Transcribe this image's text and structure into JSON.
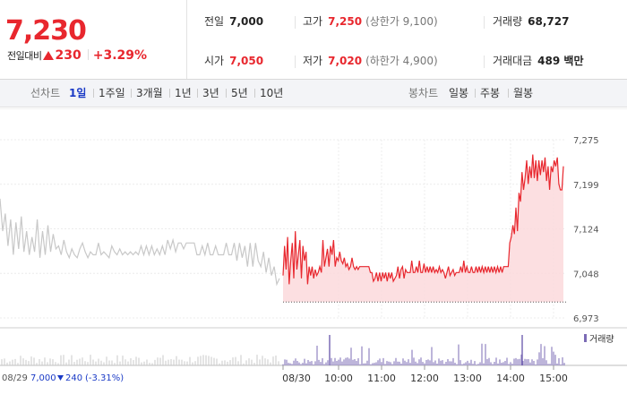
{
  "quote": {
    "price": "7,230",
    "change_label": "전일대비",
    "change_abs": "230",
    "change_pct": "+3.29%",
    "stats": [
      {
        "label": "전일",
        "value": "7,000",
        "note": "",
        "color": "#222222"
      },
      {
        "label": "고가",
        "value": "7,250",
        "note": "(상한가 9,100)",
        "color": "#e8272e"
      },
      {
        "label": "거래량",
        "value": "68,727",
        "note": "",
        "color": "#222222"
      },
      {
        "label": "시가",
        "value": "7,050",
        "note": "",
        "color": "#e8272e"
      },
      {
        "label": "저가",
        "value": "7,020",
        "note": "(하한가 4,900)",
        "color": "#e8272e"
      },
      {
        "label": "거래대금",
        "value": "489 백만",
        "note": "",
        "color": "#222222"
      }
    ]
  },
  "tabs": {
    "line_header": "선차트",
    "line": [
      "1일",
      "1주일",
      "3개월",
      "1년",
      "3년",
      "5년",
      "10년"
    ],
    "active": "1일",
    "candle_header": "봉차트",
    "candle": [
      "일봉",
      "주봉",
      "월봉"
    ]
  },
  "colors": {
    "up": "#e8272e",
    "down": "#1a3ac6",
    "prev_day": "#c8c8c8",
    "volume": "#7b6bb5"
  },
  "chart_data": {
    "type": "line",
    "y_ticks": [
      "7,275",
      "7,199",
      "7,124",
      "7,048",
      "6,973"
    ],
    "ylim": [
      6973,
      7275
    ],
    "baseline": 7000,
    "x_ticks": [
      "08/30",
      "10:00",
      "11:00",
      "12:00",
      "13:00",
      "14:00",
      "15:00"
    ],
    "grid": true,
    "legend": "거래량",
    "prev_day_info": {
      "date": "08/29",
      "close": "7,000",
      "change": "240",
      "pct": "(-3.31%)"
    },
    "prev_day_series": {
      "values": [
        7175,
        7120,
        7150,
        7095,
        7140,
        7080,
        7135,
        7090,
        7145,
        7085,
        7120,
        7080,
        7110,
        7085,
        7140,
        7075,
        7120,
        7080,
        7130,
        7085,
        7115,
        7090,
        7095,
        7080,
        7105,
        7085,
        7075,
        7090,
        7080,
        7075,
        7090,
        7100,
        7085,
        7075,
        7085,
        7080,
        7080,
        7100,
        7080,
        7085,
        7080,
        7075,
        7095,
        7085,
        7080,
        7090,
        7080,
        7085,
        7080,
        7085,
        7080,
        7085,
        7080,
        7095,
        7080,
        7095,
        7080,
        7095,
        7080,
        7090,
        7080,
        7095,
        7080,
        7105,
        7090,
        7105,
        7085,
        7100,
        7100,
        7090,
        7100,
        7100,
        7100,
        7100,
        7080,
        7080,
        7095,
        7080,
        7100,
        7080,
        7080,
        7095,
        7080,
        7080,
        7080,
        7100,
        7080,
        7080,
        7100,
        7070,
        7100,
        7075,
        7095,
        7060,
        7100,
        7060,
        7100,
        7070,
        7060,
        7085,
        7050,
        7075,
        7045,
        7060,
        7030,
        7040
      ]
    },
    "series": [
      {
        "values": [
          7045,
          7095,
          7055,
          7110,
          7030,
          7070,
          7100,
          7040,
          7120,
          7055,
          7080,
          7105,
          7040,
          7095,
          7070,
          7085,
          7030,
          7060,
          7045,
          7060,
          7040,
          7055,
          7045,
          7050,
          7060,
          7050,
          7105,
          7060,
          7075,
          7090,
          7060,
          7095,
          7080,
          7105,
          7060,
          7075,
          7070,
          7085,
          7070,
          7065,
          7075,
          7060,
          7065,
          7055,
          7060,
          7075,
          7060,
          7055,
          7060,
          7055,
          7060,
          7060,
          7060,
          7060,
          7060,
          7060,
          7060,
          7050,
          7050,
          7035,
          7040,
          7050,
          7035,
          7050,
          7035,
          7050,
          7040,
          7050,
          7035,
          7050,
          7040,
          7050,
          7035,
          7040,
          7045,
          7060,
          7040,
          7055,
          7060,
          7040,
          7055,
          7050,
          7050,
          7050,
          7070,
          7050,
          7050,
          7060,
          7050,
          7070,
          7050,
          7050,
          7065,
          7050,
          7060,
          7050,
          7060,
          7050,
          7060,
          7050,
          7055,
          7050,
          7060,
          7050,
          7055,
          7050,
          7040,
          7050,
          7060,
          7045,
          7050,
          7055,
          7045,
          7050,
          7050,
          7050,
          7060,
          7050,
          7070,
          7050,
          7060,
          7050,
          7050,
          7060,
          7050,
          7050,
          7060,
          7050,
          7060,
          7050,
          7060,
          7050,
          7060,
          7050,
          7060,
          7050,
          7060,
          7050,
          7060,
          7050,
          7060,
          7050,
          7060,
          7050,
          7060,
          7060,
          7060,
          7060,
          7100,
          7110,
          7130,
          7115,
          7160,
          7120,
          7185,
          7170,
          7220,
          7190,
          7210,
          7240,
          7200,
          7230,
          7210,
          7250,
          7210,
          7240,
          7205,
          7240,
          7215,
          7240,
          7220,
          7245,
          7205,
          7230,
          7190,
          7230,
          7220,
          7240,
          7230,
          7245,
          7200,
          7190,
          7190,
          7230
        ]
      }
    ]
  }
}
